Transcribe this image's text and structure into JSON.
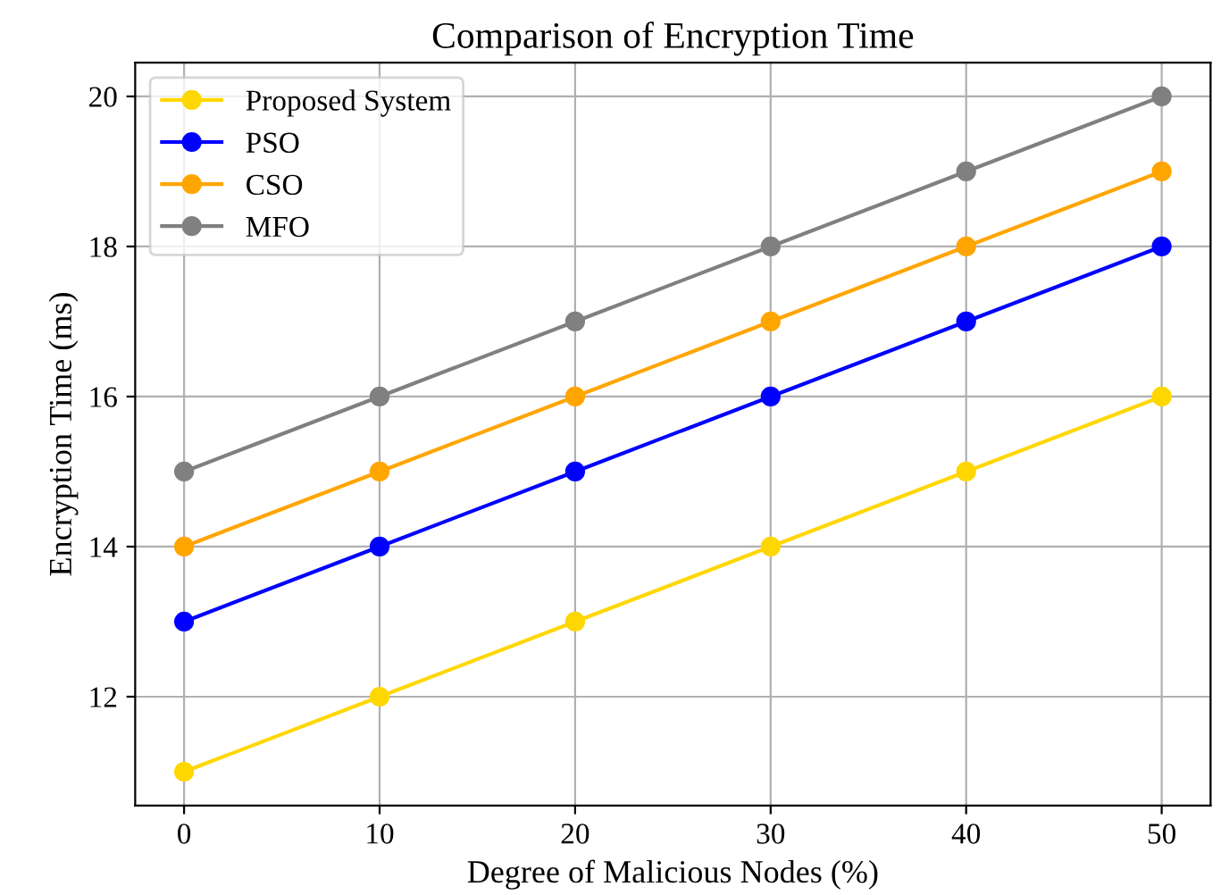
{
  "chart_data": {
    "type": "line",
    "title": "Comparison of Encryption Time",
    "xlabel": "Degree of Malicious Nodes (%)",
    "ylabel": "Encryption Time (ms)",
    "x": [
      0,
      10,
      20,
      30,
      40,
      50
    ],
    "series": [
      {
        "name": "Proposed System",
        "color": "#ffd700",
        "values": [
          11,
          12,
          13,
          14,
          15,
          16
        ]
      },
      {
        "name": "PSO",
        "color": "#0000ff",
        "values": [
          13,
          14,
          15,
          16,
          17,
          18
        ]
      },
      {
        "name": "CSO",
        "color": "#ffa500",
        "values": [
          14,
          15,
          16,
          17,
          18,
          19
        ]
      },
      {
        "name": "MFO",
        "color": "#808080",
        "values": [
          15,
          16,
          17,
          18,
          19,
          20
        ]
      }
    ],
    "xlim": [
      -2.5,
      52.5
    ],
    "xticks": [
      0,
      10,
      20,
      30,
      40,
      50
    ],
    "ylim": [
      10.55,
      20.45
    ],
    "yticks": [
      12,
      14,
      16,
      18,
      20
    ],
    "grid": true,
    "legend": "top left",
    "marker": "circle",
    "line_style": "solid"
  }
}
